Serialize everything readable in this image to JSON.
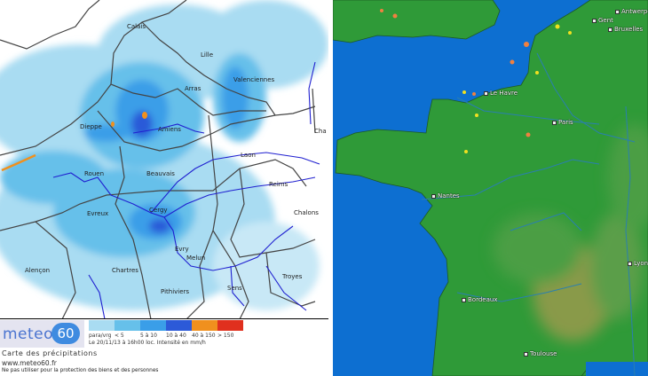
{
  "precipitation_map": {
    "cities": [
      "Calais",
      "Lille",
      "Valenciennes",
      "Arras",
      "Dieppe",
      "Amiens",
      "Laon",
      "Rouen",
      "Beauvais",
      "Reims",
      "Evreux",
      "Cergy",
      "Chalons",
      "Evry",
      "Melun",
      "Alençon",
      "Chartres",
      "Troyes",
      "Sens",
      "Pithiviers",
      "Cha"
    ],
    "legend": {
      "colors": [
        "#a9dcf2",
        "#66c0ea",
        "#3a9ee8",
        "#2c5ad8",
        "#f0901e",
        "#e0301e"
      ],
      "labels": [
        "para/vrg",
        "< 5",
        "5 à 10",
        "10 à 40",
        "40 à 150",
        "> 150"
      ],
      "date_line": "Le 20/11/13 à 16h00 loc. Intensité en mm/h"
    },
    "logo": {
      "word": "meteo",
      "number": "60"
    },
    "title": "Carte des précipitations",
    "url": "www.meteo60.fr",
    "warning": "Ne pas utiliser pour la protection des biens et des personnes"
  },
  "lightning_map": {
    "cities": [
      "Antwerpen",
      "Gent",
      "Bruxelles",
      "Le Havre",
      "Paris",
      "Nantes",
      "Bordeaux",
      "Toulouse",
      "Lyon"
    ],
    "colors": {
      "sea": "#0d6fd1",
      "land": "#2f9a38",
      "relief": "#a89a50",
      "strike_recent": "#f0e020",
      "strike_old": "#f08040"
    }
  }
}
